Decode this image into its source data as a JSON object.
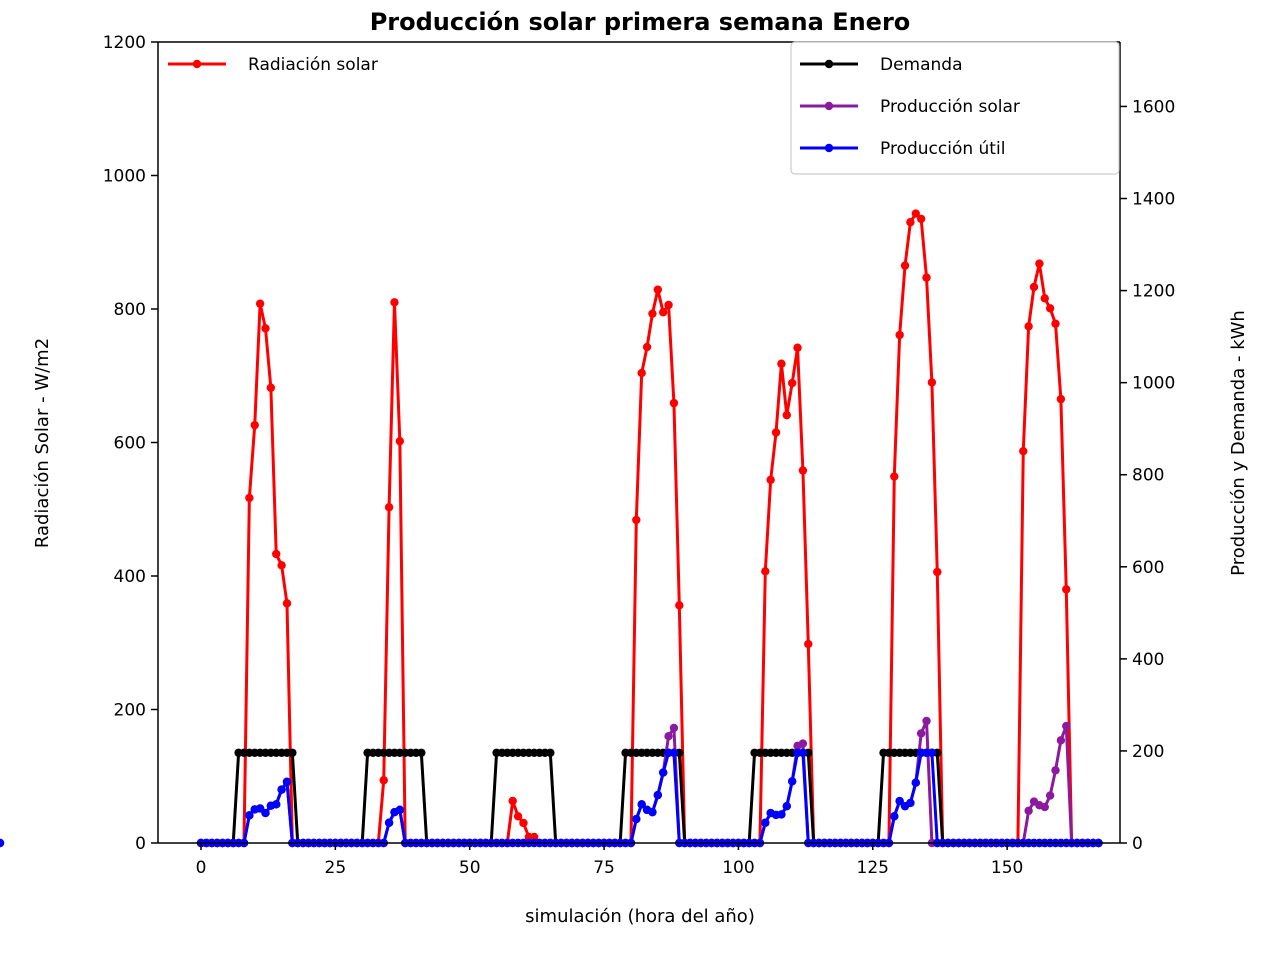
{
  "chart_data": {
    "type": "line",
    "title": "Producción solar primera semana Enero",
    "xlabel": "simulación (hora del año)",
    "ylabel": "Radiación Solar - W/m2",
    "y2label": "Producción y Demanda - kWh",
    "xlim": [
      -8,
      171
    ],
    "ylim": [
      0,
      1200
    ],
    "y2lim": [
      0,
      1740
    ],
    "x_ticks": [
      0,
      25,
      50,
      75,
      100,
      125,
      150
    ],
    "y_ticks": [
      0,
      200,
      400,
      600,
      800,
      1000,
      1200
    ],
    "y2_ticks": [
      0,
      200,
      400,
      600,
      800,
      1000,
      1200,
      1400,
      1600
    ],
    "grid": false,
    "legend_left_position": "top-left",
    "legend_right_position": "top-right",
    "hours": {
      "start": 0,
      "end": 167,
      "step": 1
    },
    "series": [
      {
        "name": "Radiación solar",
        "axis": "left",
        "color": "#ff0000",
        "values": [
          0,
          0,
          0,
          0,
          0,
          0,
          0,
          0,
          0,
          517,
          626,
          808,
          771,
          682,
          433,
          416,
          359,
          0,
          0,
          0,
          0,
          0,
          0,
          0,
          0,
          0,
          0,
          0,
          0,
          0,
          0,
          0,
          0,
          0,
          94,
          503,
          810,
          602,
          0,
          0,
          0,
          0,
          0,
          0,
          0,
          0,
          0,
          0,
          0,
          0,
          0,
          0,
          0,
          0,
          0,
          0,
          0,
          0,
          63,
          40,
          30,
          9,
          9,
          0,
          0,
          0,
          0,
          0,
          0,
          0,
          0,
          0,
          0,
          0,
          0,
          0,
          0,
          0,
          0,
          0,
          0,
          484,
          704,
          743,
          793,
          829,
          795,
          806,
          659,
          356,
          0,
          0,
          0,
          0,
          0,
          0,
          0,
          0,
          0,
          0,
          0,
          0,
          0,
          0,
          0,
          407,
          544,
          615,
          718,
          641,
          689,
          742,
          558,
          298,
          0,
          0,
          0,
          0,
          0,
          0,
          0,
          0,
          0,
          0,
          0,
          0,
          0,
          0,
          0,
          549,
          761,
          865,
          930,
          943,
          935,
          847,
          690,
          406,
          0,
          0,
          0,
          0,
          0,
          0,
          0,
          0,
          0,
          0,
          0,
          0,
          0,
          0,
          0,
          587,
          774,
          833,
          868,
          816,
          801,
          778,
          665,
          380,
          0,
          0,
          0,
          0,
          0,
          0
        ]
      },
      {
        "name": "Demanda",
        "axis": "right",
        "color": "#000000",
        "values": [
          0,
          0,
          0,
          0,
          0,
          0,
          0,
          196,
          196,
          196,
          196,
          196,
          196,
          196,
          196,
          196,
          196,
          196,
          0,
          0,
          0,
          0,
          0,
          0,
          0,
          0,
          0,
          0,
          0,
          0,
          0,
          196,
          196,
          196,
          196,
          196,
          196,
          196,
          196,
          196,
          196,
          196,
          0,
          0,
          0,
          0,
          0,
          0,
          0,
          0,
          0,
          0,
          0,
          0,
          0,
          196,
          196,
          196,
          196,
          196,
          196,
          196,
          196,
          196,
          196,
          196,
          0,
          0,
          0,
          0,
          0,
          0,
          0,
          0,
          0,
          0,
          0,
          0,
          0,
          196,
          196,
          196,
          196,
          196,
          196,
          196,
          196,
          196,
          196,
          196,
          0,
          0,
          0,
          0,
          0,
          0,
          0,
          0,
          0,
          0,
          0,
          0,
          0,
          196,
          196,
          196,
          196,
          196,
          196,
          196,
          196,
          196,
          196,
          196,
          0,
          0,
          0,
          0,
          0,
          0,
          0,
          0,
          0,
          0,
          0,
          0,
          0,
          196,
          196,
          196,
          196,
          196,
          196,
          196,
          196,
          196,
          196,
          196,
          0,
          0,
          0,
          0,
          0,
          0,
          0,
          0,
          0,
          0,
          0,
          0,
          0,
          0,
          0,
          0,
          0,
          0,
          0,
          0,
          0,
          0,
          0,
          0,
          0,
          0,
          0,
          0,
          0,
          0,
          0
        ]
      },
      {
        "name": "Producción solar",
        "axis": "right",
        "color": "#8b1a9e",
        "values": [
          0,
          0,
          0,
          0,
          0,
          0,
          0,
          0,
          0,
          60,
          73,
          75,
          65,
          81,
          84,
          116,
          133,
          0,
          0,
          0,
          0,
          0,
          0,
          0,
          0,
          0,
          0,
          0,
          0,
          0,
          0,
          0,
          0,
          0,
          0,
          44,
          67,
          72,
          0,
          0,
          0,
          0,
          0,
          0,
          0,
          0,
          0,
          0,
          0,
          0,
          0,
          0,
          0,
          0,
          0,
          0,
          0,
          0,
          0,
          0,
          0,
          0,
          0,
          0,
          0,
          0,
          0,
          0,
          0,
          0,
          0,
          0,
          0,
          0,
          0,
          0,
          0,
          0,
          0,
          0,
          0,
          52,
          84,
          72,
          67,
          104,
          153,
          232,
          250,
          0,
          0,
          0,
          0,
          0,
          0,
          0,
          0,
          0,
          0,
          0,
          0,
          0,
          0,
          0,
          0,
          44,
          65,
          61,
          62,
          80,
          134,
          211,
          216,
          0,
          0,
          0,
          0,
          0,
          0,
          0,
          0,
          0,
          0,
          0,
          0,
          0,
          0,
          0,
          0,
          58,
          91,
          80,
          87,
          131,
          238,
          265,
          0,
          0,
          0,
          0,
          0,
          0,
          0,
          0,
          0,
          0,
          0,
          0,
          0,
          0,
          0,
          0,
          0,
          0,
          70,
          90,
          82,
          78,
          103,
          158,
          223,
          254,
          0,
          0,
          0,
          0,
          0,
          0
        ]
      },
      {
        "name": "Producción útil",
        "axis": "right",
        "color": "#0000ff",
        "values": [
          0,
          0,
          0,
          0,
          0,
          0,
          0,
          0,
          0,
          60,
          73,
          75,
          65,
          81,
          84,
          116,
          133,
          0,
          0,
          0,
          0,
          0,
          0,
          0,
          0,
          0,
          0,
          0,
          0,
          0,
          0,
          0,
          0,
          0,
          0,
          44,
          67,
          72,
          0,
          0,
          0,
          0,
          0,
          0,
          0,
          0,
          0,
          0,
          0,
          0,
          0,
          0,
          0,
          0,
          0,
          0,
          0,
          0,
          0,
          0,
          0,
          0,
          0,
          0,
          0,
          0,
          0,
          0,
          0,
          0,
          0,
          0,
          0,
          0,
          0,
          0,
          0,
          0,
          0,
          0,
          0,
          52,
          84,
          72,
          67,
          104,
          153,
          196,
          196,
          0,
          0,
          0,
          0,
          0,
          0,
          0,
          0,
          0,
          0,
          0,
          0,
          0,
          0,
          0,
          0,
          44,
          65,
          61,
          62,
          80,
          134,
          196,
          196,
          0,
          0,
          0,
          0,
          0,
          0,
          0,
          0,
          0,
          0,
          0,
          0,
          0,
          0,
          0,
          0,
          58,
          91,
          80,
          87,
          131,
          196,
          196,
          196,
          0,
          0,
          0,
          0,
          0,
          0,
          0,
          0,
          0,
          0,
          0,
          0,
          0,
          0,
          0,
          0,
          0,
          0,
          0,
          0,
          0,
          0,
          0,
          0,
          0,
          0,
          0,
          0,
          0,
          0,
          0,
          0
        ]
      }
    ]
  }
}
